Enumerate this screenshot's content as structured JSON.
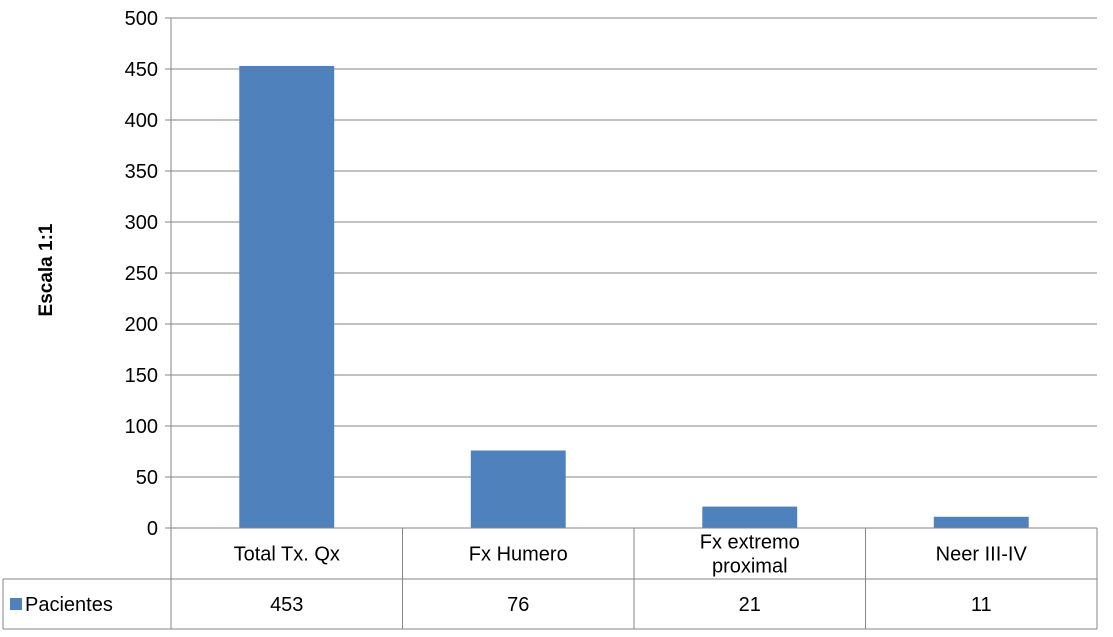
{
  "chart_data": {
    "type": "bar",
    "title": "",
    "ylabel": "Escala 1:1",
    "xlabel": "",
    "ylim": [
      0,
      500
    ],
    "ytick_step": 50,
    "grid": true,
    "categories": [
      [
        "Total Tx. Qx"
      ],
      [
        "Fx Humero"
      ],
      [
        "Fx extremo",
        "proximal"
      ],
      [
        "Neer III-IV"
      ]
    ],
    "series": [
      {
        "name": "Pacientes",
        "color": "#4F81BD",
        "values": [
          453,
          76,
          21,
          11
        ]
      }
    ],
    "data_table": true,
    "legend_placement": "data-table-row-header"
  }
}
